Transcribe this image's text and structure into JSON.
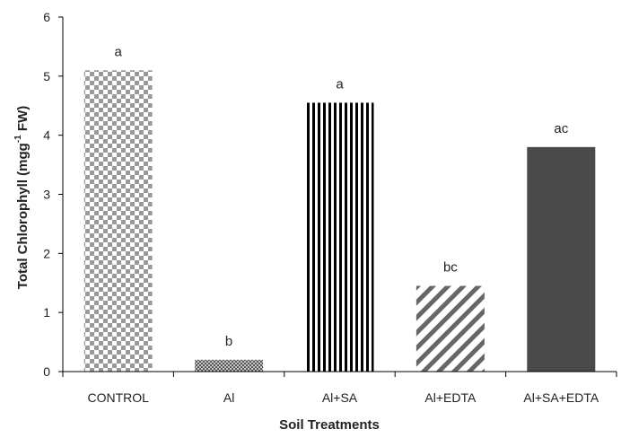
{
  "chart_data": {
    "type": "bar",
    "title": "",
    "xlabel": "Soil Treatments",
    "ylabel": "Total Chlorophyll (mgg",
    "ylabel_sup": "-1",
    "ylabel_suffix": " FW)",
    "categories": [
      "CONTROL",
      "Al",
      "Al+SA",
      "Al+EDTA",
      "Al+SA+EDTA"
    ],
    "values": [
      5.1,
      0.2,
      4.55,
      1.45,
      3.8
    ],
    "data_labels": [
      "a",
      "b",
      "a",
      "bc",
      "ac"
    ],
    "patterns": [
      "checker",
      "dots",
      "vertical-stripes",
      "diagonal-stripes",
      "solid"
    ],
    "ylim": [
      0,
      6
    ],
    "yticks": [
      0,
      1,
      2,
      3,
      4,
      5,
      6
    ],
    "grid": false,
    "colors": {
      "bar_dark": "#4a4a4a",
      "bar_light": "#ffffff",
      "checker_dark": "#999999",
      "axis": "#000000"
    }
  }
}
